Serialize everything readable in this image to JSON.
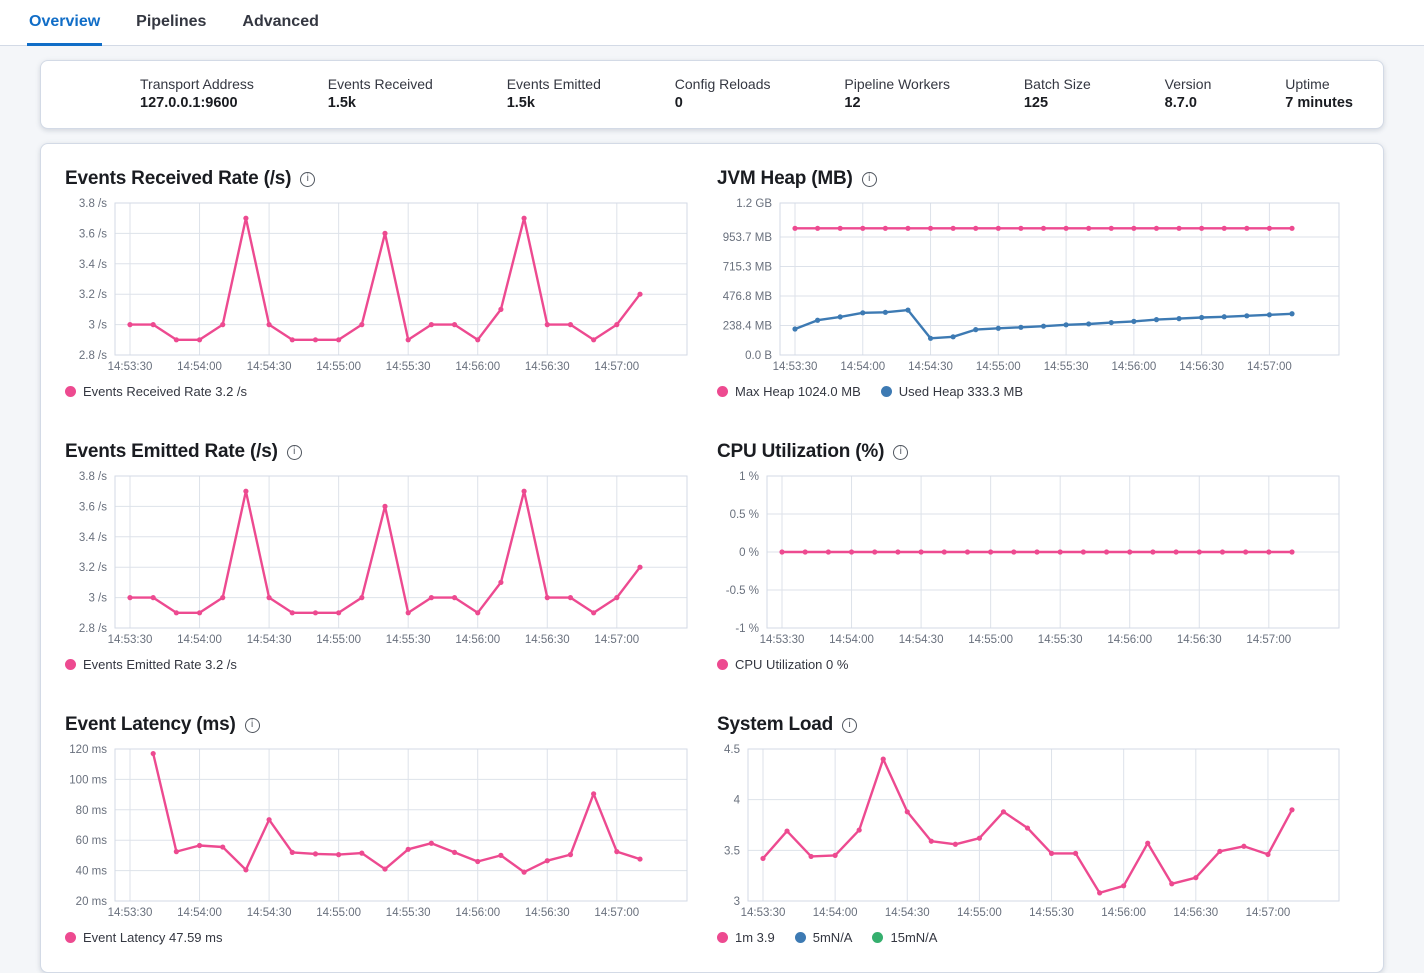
{
  "tabs": {
    "items": [
      {
        "label": "Overview",
        "active": true
      },
      {
        "label": "Pipelines",
        "active": false
      },
      {
        "label": "Advanced",
        "active": false
      }
    ]
  },
  "stats": {
    "items": [
      {
        "label": "Transport Address",
        "value": "127.0.0.1:9600"
      },
      {
        "label": "Events Received",
        "value": "1.5k"
      },
      {
        "label": "Events Emitted",
        "value": "1.5k"
      },
      {
        "label": "Config Reloads",
        "value": "0"
      },
      {
        "label": "Pipeline Workers",
        "value": "12"
      },
      {
        "label": "Batch Size",
        "value": "125"
      },
      {
        "label": "Version",
        "value": "8.7.0"
      },
      {
        "label": "Uptime",
        "value": "7 minutes"
      }
    ]
  },
  "icons": {
    "info_glyph": "i"
  },
  "palette": {
    "pink": "#ed4a90",
    "blue": "#3d7ab3",
    "green": "#35af6e"
  },
  "chart_data": [
    {
      "type": "line",
      "title": "Events Received Rate (/s)",
      "x_tick_labels": [
        "14:53:30",
        "14:54:00",
        "14:54:30",
        "14:55:00",
        "14:55:30",
        "14:56:00",
        "14:56:30",
        "14:57:00"
      ],
      "x_tick_seconds": [
        0,
        30,
        60,
        90,
        120,
        150,
        180,
        210
      ],
      "x_domain_seconds": [
        0,
        220
      ],
      "ylim": [
        2.8,
        3.8
      ],
      "y_ticks": [
        {
          "v": 2.8,
          "label": "2.8 /s"
        },
        {
          "v": 3.0,
          "label": "3 /s"
        },
        {
          "v": 3.2,
          "label": "3.2 /s"
        },
        {
          "v": 3.4,
          "label": "3.4 /s"
        },
        {
          "v": 3.6,
          "label": "3.6 /s"
        },
        {
          "v": 3.8,
          "label": "3.8 /s"
        }
      ],
      "series": [
        {
          "name": "Events Received Rate",
          "color": "#ed4a90",
          "start_second": 0,
          "step_seconds": 10,
          "values": [
            3,
            3,
            2.9,
            2.9,
            3,
            3.7,
            3,
            2.9,
            2.9,
            2.9,
            3,
            3.6,
            2.9,
            3,
            3,
            2.9,
            3.1,
            3.7,
            3,
            3,
            2.9,
            3,
            3.2
          ]
        }
      ],
      "legend": [
        {
          "label": "Events Received Rate 3.2 /s",
          "color": "#ed4a90"
        }
      ]
    },
    {
      "type": "line",
      "title": "JVM Heap (MB)",
      "x_tick_labels": [
        "14:53:30",
        "14:54:00",
        "14:54:30",
        "14:55:00",
        "14:55:30",
        "14:56:00",
        "14:56:30",
        "14:57:00"
      ],
      "x_tick_seconds": [
        0,
        30,
        60,
        90,
        120,
        150,
        180,
        210
      ],
      "x_domain_seconds": [
        0,
        220
      ],
      "ylim": [
        0,
        1228.8
      ],
      "y_ticks": [
        {
          "v": 0,
          "label": "0.0 B"
        },
        {
          "v": 238.4,
          "label": "238.4 MB"
        },
        {
          "v": 476.8,
          "label": "476.8 MB"
        },
        {
          "v": 715.3,
          "label": "715.3 MB"
        },
        {
          "v": 953.7,
          "label": "953.7 MB"
        },
        {
          "v": 1228.8,
          "label": "1.2 GB"
        }
      ],
      "series": [
        {
          "name": "Max Heap",
          "color": "#ed4a90",
          "start_second": 0,
          "step_seconds": 10,
          "values": [
            1024,
            1024,
            1024,
            1024,
            1024,
            1024,
            1024,
            1024,
            1024,
            1024,
            1024,
            1024,
            1024,
            1024,
            1024,
            1024,
            1024,
            1024,
            1024,
            1024,
            1024,
            1024,
            1024
          ]
        },
        {
          "name": "Used Heap",
          "color": "#3d7ab3",
          "start_second": 0,
          "step_seconds": 10,
          "values": [
            210,
            281,
            308,
            341,
            345,
            363,
            135,
            147,
            205,
            216,
            224,
            233,
            244,
            251,
            262,
            272,
            286,
            294,
            303,
            309,
            317,
            325,
            333.3
          ]
        }
      ],
      "legend": [
        {
          "label": "Max Heap 1024.0 MB",
          "color": "#ed4a90"
        },
        {
          "label": "Used Heap 333.3 MB",
          "color": "#3d7ab3"
        }
      ]
    },
    {
      "type": "line",
      "title": "Events Emitted Rate (/s)",
      "x_tick_labels": [
        "14:53:30",
        "14:54:00",
        "14:54:30",
        "14:55:00",
        "14:55:30",
        "14:56:00",
        "14:56:30",
        "14:57:00"
      ],
      "x_tick_seconds": [
        0,
        30,
        60,
        90,
        120,
        150,
        180,
        210
      ],
      "x_domain_seconds": [
        0,
        220
      ],
      "ylim": [
        2.8,
        3.8
      ],
      "y_ticks": [
        {
          "v": 2.8,
          "label": "2.8 /s"
        },
        {
          "v": 3.0,
          "label": "3 /s"
        },
        {
          "v": 3.2,
          "label": "3.2 /s"
        },
        {
          "v": 3.4,
          "label": "3.4 /s"
        },
        {
          "v": 3.6,
          "label": "3.6 /s"
        },
        {
          "v": 3.8,
          "label": "3.8 /s"
        }
      ],
      "series": [
        {
          "name": "Events Emitted Rate",
          "color": "#ed4a90",
          "start_second": 0,
          "step_seconds": 10,
          "values": [
            3,
            3,
            2.9,
            2.9,
            3,
            3.7,
            3,
            2.9,
            2.9,
            2.9,
            3,
            3.6,
            2.9,
            3,
            3,
            2.9,
            3.1,
            3.7,
            3,
            3,
            2.9,
            3,
            3.2
          ]
        }
      ],
      "legend": [
        {
          "label": "Events Emitted Rate 3.2 /s",
          "color": "#ed4a90"
        }
      ]
    },
    {
      "type": "line",
      "title": "CPU Utilization (%)",
      "x_tick_labels": [
        "14:53:30",
        "14:54:00",
        "14:54:30",
        "14:55:00",
        "14:55:30",
        "14:56:00",
        "14:56:30",
        "14:57:00"
      ],
      "x_tick_seconds": [
        0,
        30,
        60,
        90,
        120,
        150,
        180,
        210
      ],
      "x_domain_seconds": [
        0,
        220
      ],
      "ylim": [
        -1,
        1
      ],
      "y_ticks": [
        {
          "v": -1,
          "label": "-1 %"
        },
        {
          "v": -0.5,
          "label": "-0.5 %"
        },
        {
          "v": 0,
          "label": "0 %"
        },
        {
          "v": 0.5,
          "label": "0.5 %"
        },
        {
          "v": 1,
          "label": "1 %"
        }
      ],
      "series": [
        {
          "name": "CPU Utilization",
          "color": "#ed4a90",
          "start_second": 0,
          "step_seconds": 10,
          "values": [
            0,
            0,
            0,
            0,
            0,
            0,
            0,
            0,
            0,
            0,
            0,
            0,
            0,
            0,
            0,
            0,
            0,
            0,
            0,
            0,
            0,
            0,
            0
          ]
        }
      ],
      "legend": [
        {
          "label": "CPU Utilization 0 %",
          "color": "#ed4a90"
        }
      ]
    },
    {
      "type": "line",
      "title": "Event Latency (ms)",
      "x_tick_labels": [
        "14:53:30",
        "14:54:00",
        "14:54:30",
        "14:55:00",
        "14:55:30",
        "14:56:00",
        "14:56:30",
        "14:57:00"
      ],
      "x_tick_seconds": [
        0,
        30,
        60,
        90,
        120,
        150,
        180,
        210
      ],
      "x_domain_seconds": [
        0,
        220
      ],
      "ylim": [
        20,
        120
      ],
      "y_ticks": [
        {
          "v": 20,
          "label": "20 ms"
        },
        {
          "v": 40,
          "label": "40 ms"
        },
        {
          "v": 60,
          "label": "60 ms"
        },
        {
          "v": 80,
          "label": "80 ms"
        },
        {
          "v": 100,
          "label": "100 ms"
        },
        {
          "v": 120,
          "label": "120 ms"
        }
      ],
      "series": [
        {
          "name": "Event Latency",
          "color": "#ed4a90",
          "start_second": 10,
          "step_seconds": 10,
          "values": [
            117,
            52.5,
            56.5,
            55.5,
            40.5,
            73.5,
            52,
            51,
            50.5,
            51.5,
            41,
            54,
            58,
            52,
            46,
            50,
            39,
            46.5,
            50.5,
            90.5,
            52.5,
            47.59
          ]
        }
      ],
      "legend": [
        {
          "label": "Event Latency 47.59 ms",
          "color": "#ed4a90"
        }
      ]
    },
    {
      "type": "line",
      "title": "System Load",
      "x_tick_labels": [
        "14:53:30",
        "14:54:00",
        "14:54:30",
        "14:55:00",
        "14:55:30",
        "14:56:00",
        "14:56:30",
        "14:57:00"
      ],
      "x_tick_seconds": [
        0,
        30,
        60,
        90,
        120,
        150,
        180,
        210
      ],
      "x_domain_seconds": [
        0,
        220
      ],
      "ylim": [
        3,
        4.5
      ],
      "y_ticks": [
        {
          "v": 3,
          "label": "3"
        },
        {
          "v": 3.5,
          "label": "3.5"
        },
        {
          "v": 4,
          "label": "4"
        },
        {
          "v": 4.5,
          "label": "4.5"
        }
      ],
      "series": [
        {
          "name": "1m",
          "color": "#ed4a90",
          "start_second": 0,
          "step_seconds": 10,
          "values": [
            3.42,
            3.69,
            3.44,
            3.45,
            3.7,
            4.4,
            3.88,
            3.59,
            3.56,
            3.62,
            3.88,
            3.72,
            3.47,
            3.47,
            3.08,
            3.15,
            3.57,
            3.17,
            3.23,
            3.49,
            3.54,
            3.46,
            3.9
          ]
        }
      ],
      "legend": [
        {
          "label": "1m 3.9",
          "color": "#ed4a90"
        },
        {
          "label": "5mN/A",
          "color": "#3d7ab3"
        },
        {
          "label": "15mN/A",
          "color": "#35af6e"
        }
      ]
    }
  ]
}
